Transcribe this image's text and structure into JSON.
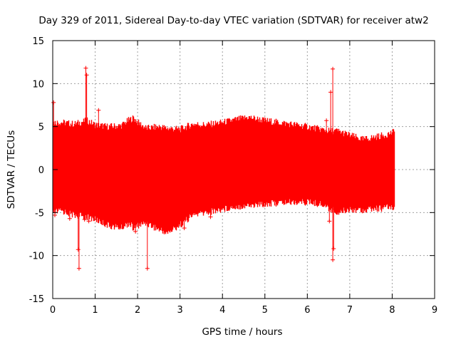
{
  "chart_data": {
    "type": "scatter",
    "title": "Day 329 of 2011, Sidereal Day-to-day VTEC variation (SDTVAR) for receiver atw2",
    "xlabel": "GPS time / hours",
    "ylabel": "SDTVAR / TECUs",
    "xlim": [
      0,
      9
    ],
    "ylim": [
      -15,
      15
    ],
    "xticks": [
      0,
      1,
      2,
      3,
      4,
      5,
      6,
      7,
      8,
      9
    ],
    "yticks": [
      -15,
      -10,
      -5,
      0,
      5,
      10,
      15
    ],
    "x_tick_labels": [
      "0",
      "1",
      "2",
      "3",
      "4",
      "5",
      "6",
      "7",
      "8",
      "9"
    ],
    "y_tick_labels": [
      "-15",
      "-10",
      "-5",
      "0",
      "5",
      "10",
      "15"
    ],
    "grid": true,
    "series_color": "#ff0000",
    "envelope": {
      "x": [
        0.0,
        0.2,
        0.5,
        0.8,
        1.0,
        1.3,
        1.6,
        1.8,
        1.9,
        2.0,
        2.2,
        2.5,
        2.7,
        3.0,
        3.3,
        3.6,
        4.0,
        4.3,
        4.6,
        5.0,
        5.3,
        5.6,
        6.0,
        6.3,
        6.5,
        6.7,
        7.0,
        7.3,
        7.5,
        7.8,
        8.05
      ],
      "upper": [
        5.5,
        5.5,
        5.3,
        5.7,
        5.2,
        5.0,
        5.1,
        5.8,
        6.0,
        5.5,
        4.8,
        5.0,
        4.8,
        4.7,
        5.3,
        5.2,
        5.5,
        5.8,
        6.1,
        5.7,
        5.5,
        5.3,
        5.0,
        4.7,
        4.5,
        4.5,
        4.0,
        3.5,
        3.7,
        4.0,
        4.4
      ],
      "lower": [
        -5.0,
        -4.8,
        -5.3,
        -5.5,
        -5.8,
        -6.5,
        -6.8,
        -6.2,
        -6.9,
        -6.5,
        -6.2,
        -7.0,
        -7.4,
        -6.4,
        -5.3,
        -5.0,
        -4.6,
        -4.3,
        -4.2,
        -4.0,
        -3.9,
        -3.8,
        -3.8,
        -4.0,
        -4.5,
        -5.0,
        -4.6,
        -4.7,
        -4.6,
        -4.5,
        -4.3
      ]
    },
    "spikes": [
      {
        "x": 0.02,
        "y": 7.8
      },
      {
        "x": 0.05,
        "y": -5.3
      },
      {
        "x": 0.78,
        "y": 11.8
      },
      {
        "x": 0.8,
        "y": 11.0
      },
      {
        "x": 0.75,
        "y": -5.8
      },
      {
        "x": 0.85,
        "y": -6.0
      },
      {
        "x": 1.08,
        "y": 6.9
      },
      {
        "x": 0.4,
        "y": -5.7
      },
      {
        "x": 0.6,
        "y": -9.3
      },
      {
        "x": 0.62,
        "y": -11.5
      },
      {
        "x": 2.23,
        "y": -11.5
      },
      {
        "x": 1.95,
        "y": -7.2
      },
      {
        "x": 3.72,
        "y": -5.5
      },
      {
        "x": 3.1,
        "y": -6.8
      },
      {
        "x": 6.6,
        "y": 11.7
      },
      {
        "x": 6.55,
        "y": 9.0
      },
      {
        "x": 6.6,
        "y": -10.5
      },
      {
        "x": 6.45,
        "y": 5.7
      },
      {
        "x": 6.52,
        "y": -6.0
      },
      {
        "x": 6.62,
        "y": -9.2
      }
    ]
  }
}
